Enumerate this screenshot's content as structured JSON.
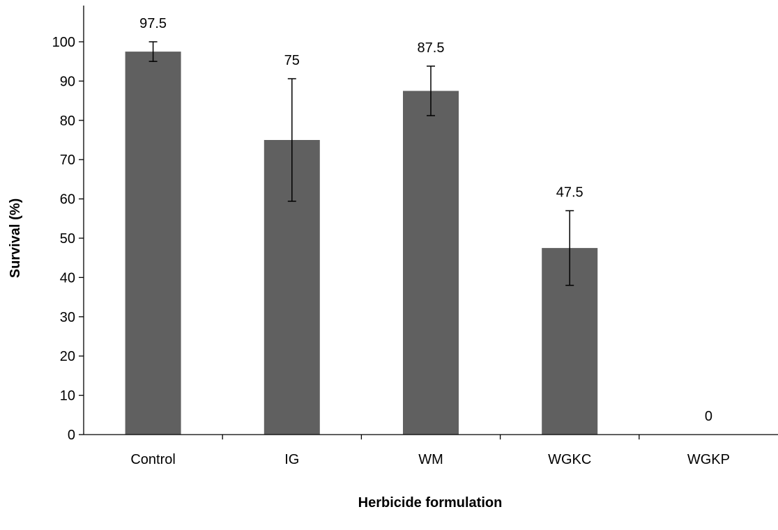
{
  "chart_data": {
    "type": "bar",
    "categories": [
      "Control",
      "IG",
      "WM",
      "WGKC",
      "WGKP"
    ],
    "values": [
      97.5,
      75,
      87.5,
      47.5,
      0
    ],
    "errors": [
      2.5,
      15.6,
      6.3,
      9.5,
      0
    ],
    "data_labels": [
      "97.5",
      "75",
      "87.5",
      "47.5",
      "0"
    ],
    "xlabel": "Herbicide formulation",
    "ylabel": "Survival (%)",
    "ylim": [
      0,
      100
    ],
    "yticks": [
      "0",
      "10",
      "20",
      "30",
      "40",
      "50",
      "60",
      "70",
      "80",
      "90",
      "100"
    ],
    "grid": false,
    "legend": "none",
    "bar_color": "#606060"
  }
}
